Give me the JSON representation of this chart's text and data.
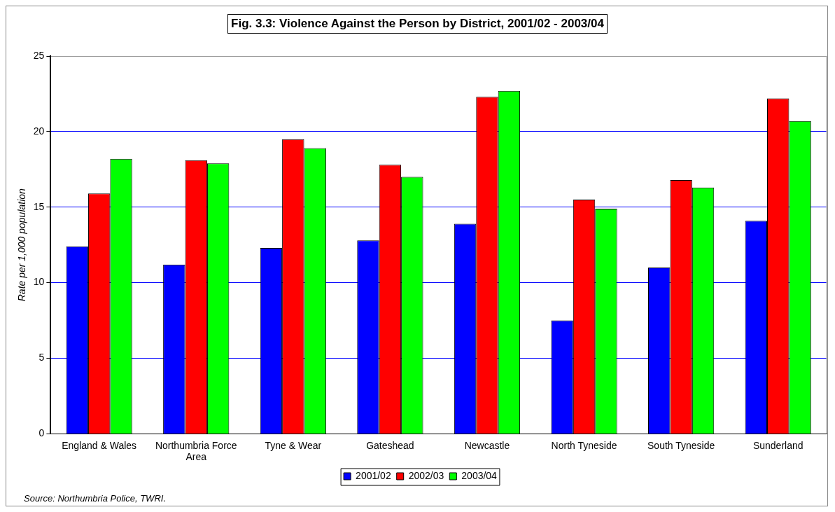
{
  "chart_data": {
    "type": "bar",
    "title": "Fig. 3.3: Violence Against the Person by District, 2001/02 - 2003/04",
    "ylabel": "Rate per 1,000 population",
    "categories": [
      "England & Wales",
      "Northumbria Force Area",
      "Tyne & Wear",
      "Gateshead",
      "Newcastle",
      "North Tyneside",
      "South Tyneside",
      "Sunderland"
    ],
    "series": [
      {
        "name": "2001/02",
        "color": "#0000ff",
        "values": [
          12.4,
          11.2,
          12.3,
          12.8,
          13.9,
          7.5,
          11.0,
          14.1
        ]
      },
      {
        "name": "2002/03",
        "color": "#ff0000",
        "values": [
          15.9,
          18.1,
          19.5,
          17.8,
          22.3,
          15.5,
          16.8,
          22.2
        ]
      },
      {
        "name": "2003/04",
        "color": "#00ff00",
        "values": [
          18.2,
          17.9,
          18.9,
          17.0,
          22.7,
          14.9,
          16.3,
          20.7
        ]
      }
    ],
    "ylim": [
      0,
      25
    ],
    "yticks": [
      0,
      5,
      10,
      15,
      20,
      25
    ],
    "grid": "y",
    "legend": "bottom",
    "annotations": [
      "Source: Northumbria Police, TWRI."
    ]
  }
}
